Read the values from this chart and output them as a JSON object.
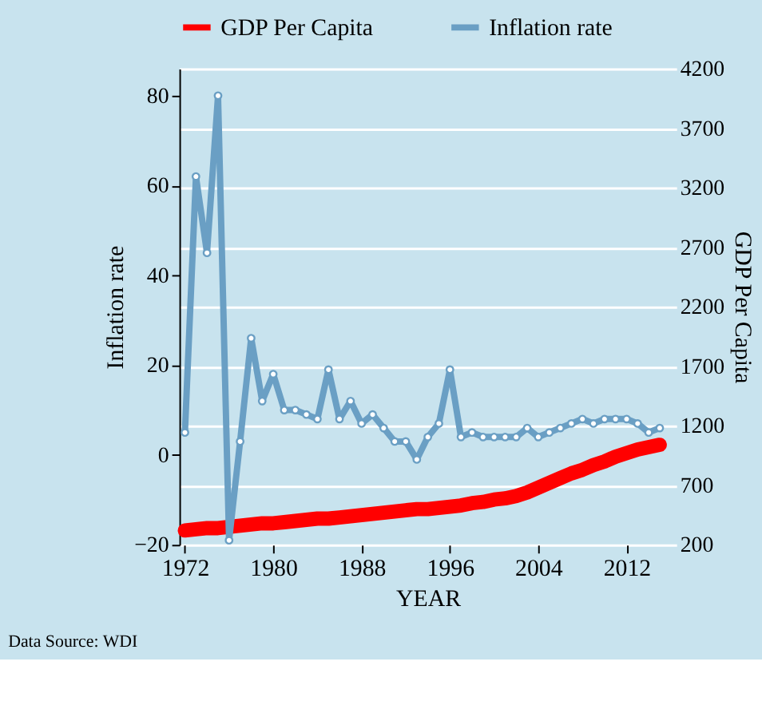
{
  "chart_data": {
    "type": "line",
    "x": [
      1972,
      1973,
      1974,
      1975,
      1976,
      1977,
      1978,
      1979,
      1980,
      1981,
      1982,
      1983,
      1984,
      1985,
      1986,
      1987,
      1988,
      1989,
      1990,
      1991,
      1992,
      1993,
      1994,
      1995,
      1996,
      1997,
      1998,
      1999,
      2000,
      2001,
      2002,
      2003,
      2004,
      2005,
      2006,
      2007,
      2008,
      2009,
      2010,
      2011,
      2012,
      2013,
      2014,
      2015
    ],
    "series": [
      {
        "name": "GDP Per Capita",
        "color": "#ff0000",
        "axis": "y2",
        "marker": "circle",
        "values": [
          320,
          330,
          340,
          340,
          350,
          360,
          370,
          380,
          380,
          390,
          400,
          410,
          420,
          420,
          430,
          440,
          450,
          460,
          470,
          480,
          490,
          500,
          500,
          510,
          520,
          530,
          550,
          560,
          580,
          590,
          610,
          640,
          680,
          720,
          760,
          800,
          830,
          870,
          900,
          940,
          970,
          1000,
          1020,
          1040
        ]
      },
      {
        "name": "Inflation rate",
        "color": "#6a9fc4",
        "marker": "circle",
        "values": [
          5,
          62,
          45,
          80,
          -19,
          3,
          26,
          12,
          18,
          10,
          10,
          9,
          8,
          19,
          8,
          12,
          7,
          9,
          6,
          3,
          3,
          -1,
          4,
          7,
          19,
          4,
          5,
          4,
          4,
          4,
          4,
          6,
          4,
          5,
          6,
          7,
          8,
          7,
          8,
          8,
          8,
          7,
          5,
          6
        ]
      }
    ],
    "xlabel": "YEAR",
    "ylabel": "Inflation rate",
    "y2label": "GDP Per Capita",
    "xlim": [
      1971.5,
      2016.5
    ],
    "xticks": [
      1972,
      1980,
      1988,
      1996,
      2004,
      2012
    ],
    "ylim": [
      -20,
      86
    ],
    "yticks": [
      -20,
      0,
      20,
      40,
      60,
      80
    ],
    "y2lim": [
      200,
      4200
    ],
    "y2ticks": [
      200,
      700,
      1200,
      1700,
      2200,
      2700,
      3200,
      3700,
      4200
    ],
    "grid": true,
    "legend": "top",
    "annotations": [
      "Data Source: WDI"
    ]
  }
}
